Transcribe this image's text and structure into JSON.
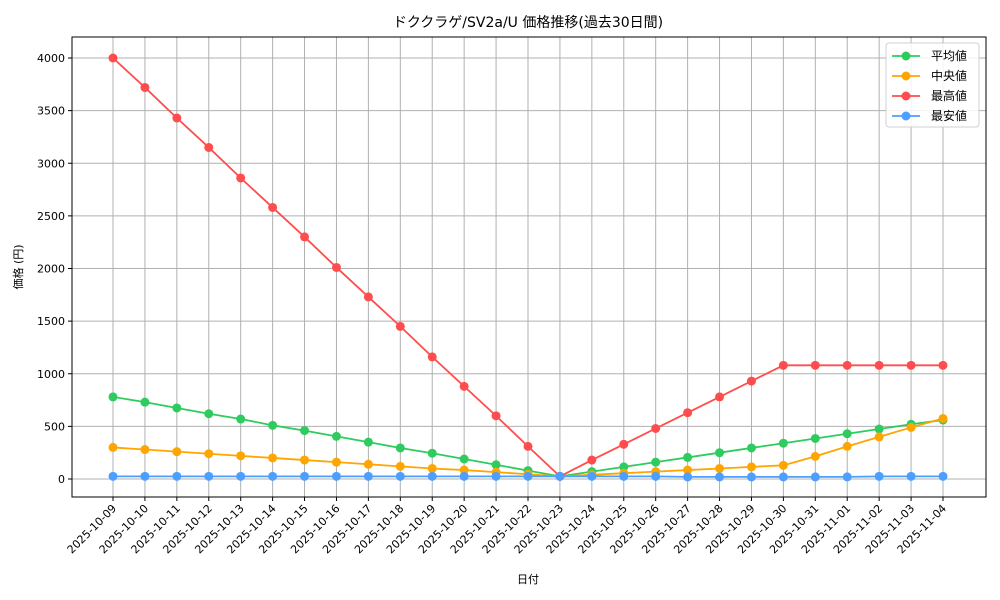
{
  "chart_data": {
    "type": "line",
    "title": "ドククラゲ/SV2a/U 価格推移(過去30日間)",
    "xlabel": "日付",
    "ylabel": "価格 (円)",
    "ylim": [
      -180,
      4200
    ],
    "yticks": [
      0,
      500,
      1000,
      1500,
      2000,
      2500,
      3000,
      3500,
      4000
    ],
    "grid": true,
    "legend_position": "upper right",
    "x": [
      "2025-10-09",
      "2025-10-10",
      "2025-10-11",
      "2025-10-12",
      "2025-10-13",
      "2025-10-14",
      "2025-10-15",
      "2025-10-16",
      "2025-10-17",
      "2025-10-18",
      "2025-10-19",
      "2025-10-20",
      "2025-10-21",
      "2025-10-22",
      "2025-10-23",
      "2025-10-24",
      "2025-10-25",
      "2025-10-26",
      "2025-10-27",
      "2025-10-28",
      "2025-10-29",
      "2025-10-30",
      "2025-10-31",
      "2025-11-01",
      "2025-11-02",
      "2025-11-03",
      "2025-11-04"
    ],
    "series": [
      {
        "name": "平均値",
        "color": "#2ecc5f",
        "values": [
          780,
          730,
          675,
          620,
          570,
          510,
          460,
          405,
          350,
          295,
          245,
          190,
          135,
          80,
          25,
          70,
          115,
          160,
          205,
          250,
          295,
          340,
          385,
          430,
          475,
          520,
          560
        ]
      },
      {
        "name": "中央値",
        "color": "#ffa500",
        "values": [
          300,
          280,
          260,
          240,
          220,
          200,
          180,
          160,
          140,
          120,
          100,
          85,
          65,
          45,
          25,
          40,
          55,
          70,
          85,
          100,
          115,
          130,
          215,
          310,
          400,
          490,
          575
        ]
      },
      {
        "name": "最高値",
        "color": "#ff4d4d",
        "values": [
          4000,
          3720,
          3430,
          3150,
          2860,
          2580,
          2300,
          2010,
          1730,
          1450,
          1160,
          880,
          600,
          310,
          25,
          180,
          330,
          480,
          630,
          780,
          930,
          1080,
          1080,
          1080,
          1080,
          1080,
          1080
        ]
      },
      {
        "name": "最安値",
        "color": "#4d9fff",
        "values": [
          25,
          25,
          25,
          25,
          25,
          25,
          25,
          25,
          25,
          25,
          25,
          25,
          25,
          25,
          25,
          25,
          25,
          25,
          20,
          20,
          20,
          20,
          20,
          20,
          25,
          25,
          25
        ]
      }
    ]
  }
}
